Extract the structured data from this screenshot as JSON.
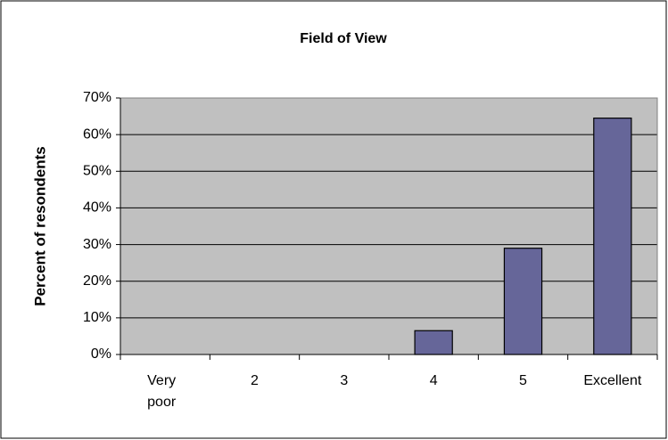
{
  "chart_data": {
    "type": "bar",
    "title": "Field of View",
    "ylabel": "Percent of resondents",
    "categories": [
      "Very poor",
      "2",
      "3",
      "4",
      "5",
      "Excellent"
    ],
    "values": [
      0,
      0,
      0,
      6.5,
      29,
      64.5
    ],
    "color": "#666699",
    "ylim": [
      0,
      70
    ],
    "yticks": [
      {
        "value": 0,
        "label": "0%"
      },
      {
        "value": 10,
        "label": "10%"
      },
      {
        "value": 20,
        "label": "20%"
      },
      {
        "value": 30,
        "label": "30%"
      },
      {
        "value": 40,
        "label": "40%"
      },
      {
        "value": 50,
        "label": "50%"
      },
      {
        "value": 60,
        "label": "60%"
      },
      {
        "value": 70,
        "label": "70%"
      }
    ],
    "grid": true
  }
}
